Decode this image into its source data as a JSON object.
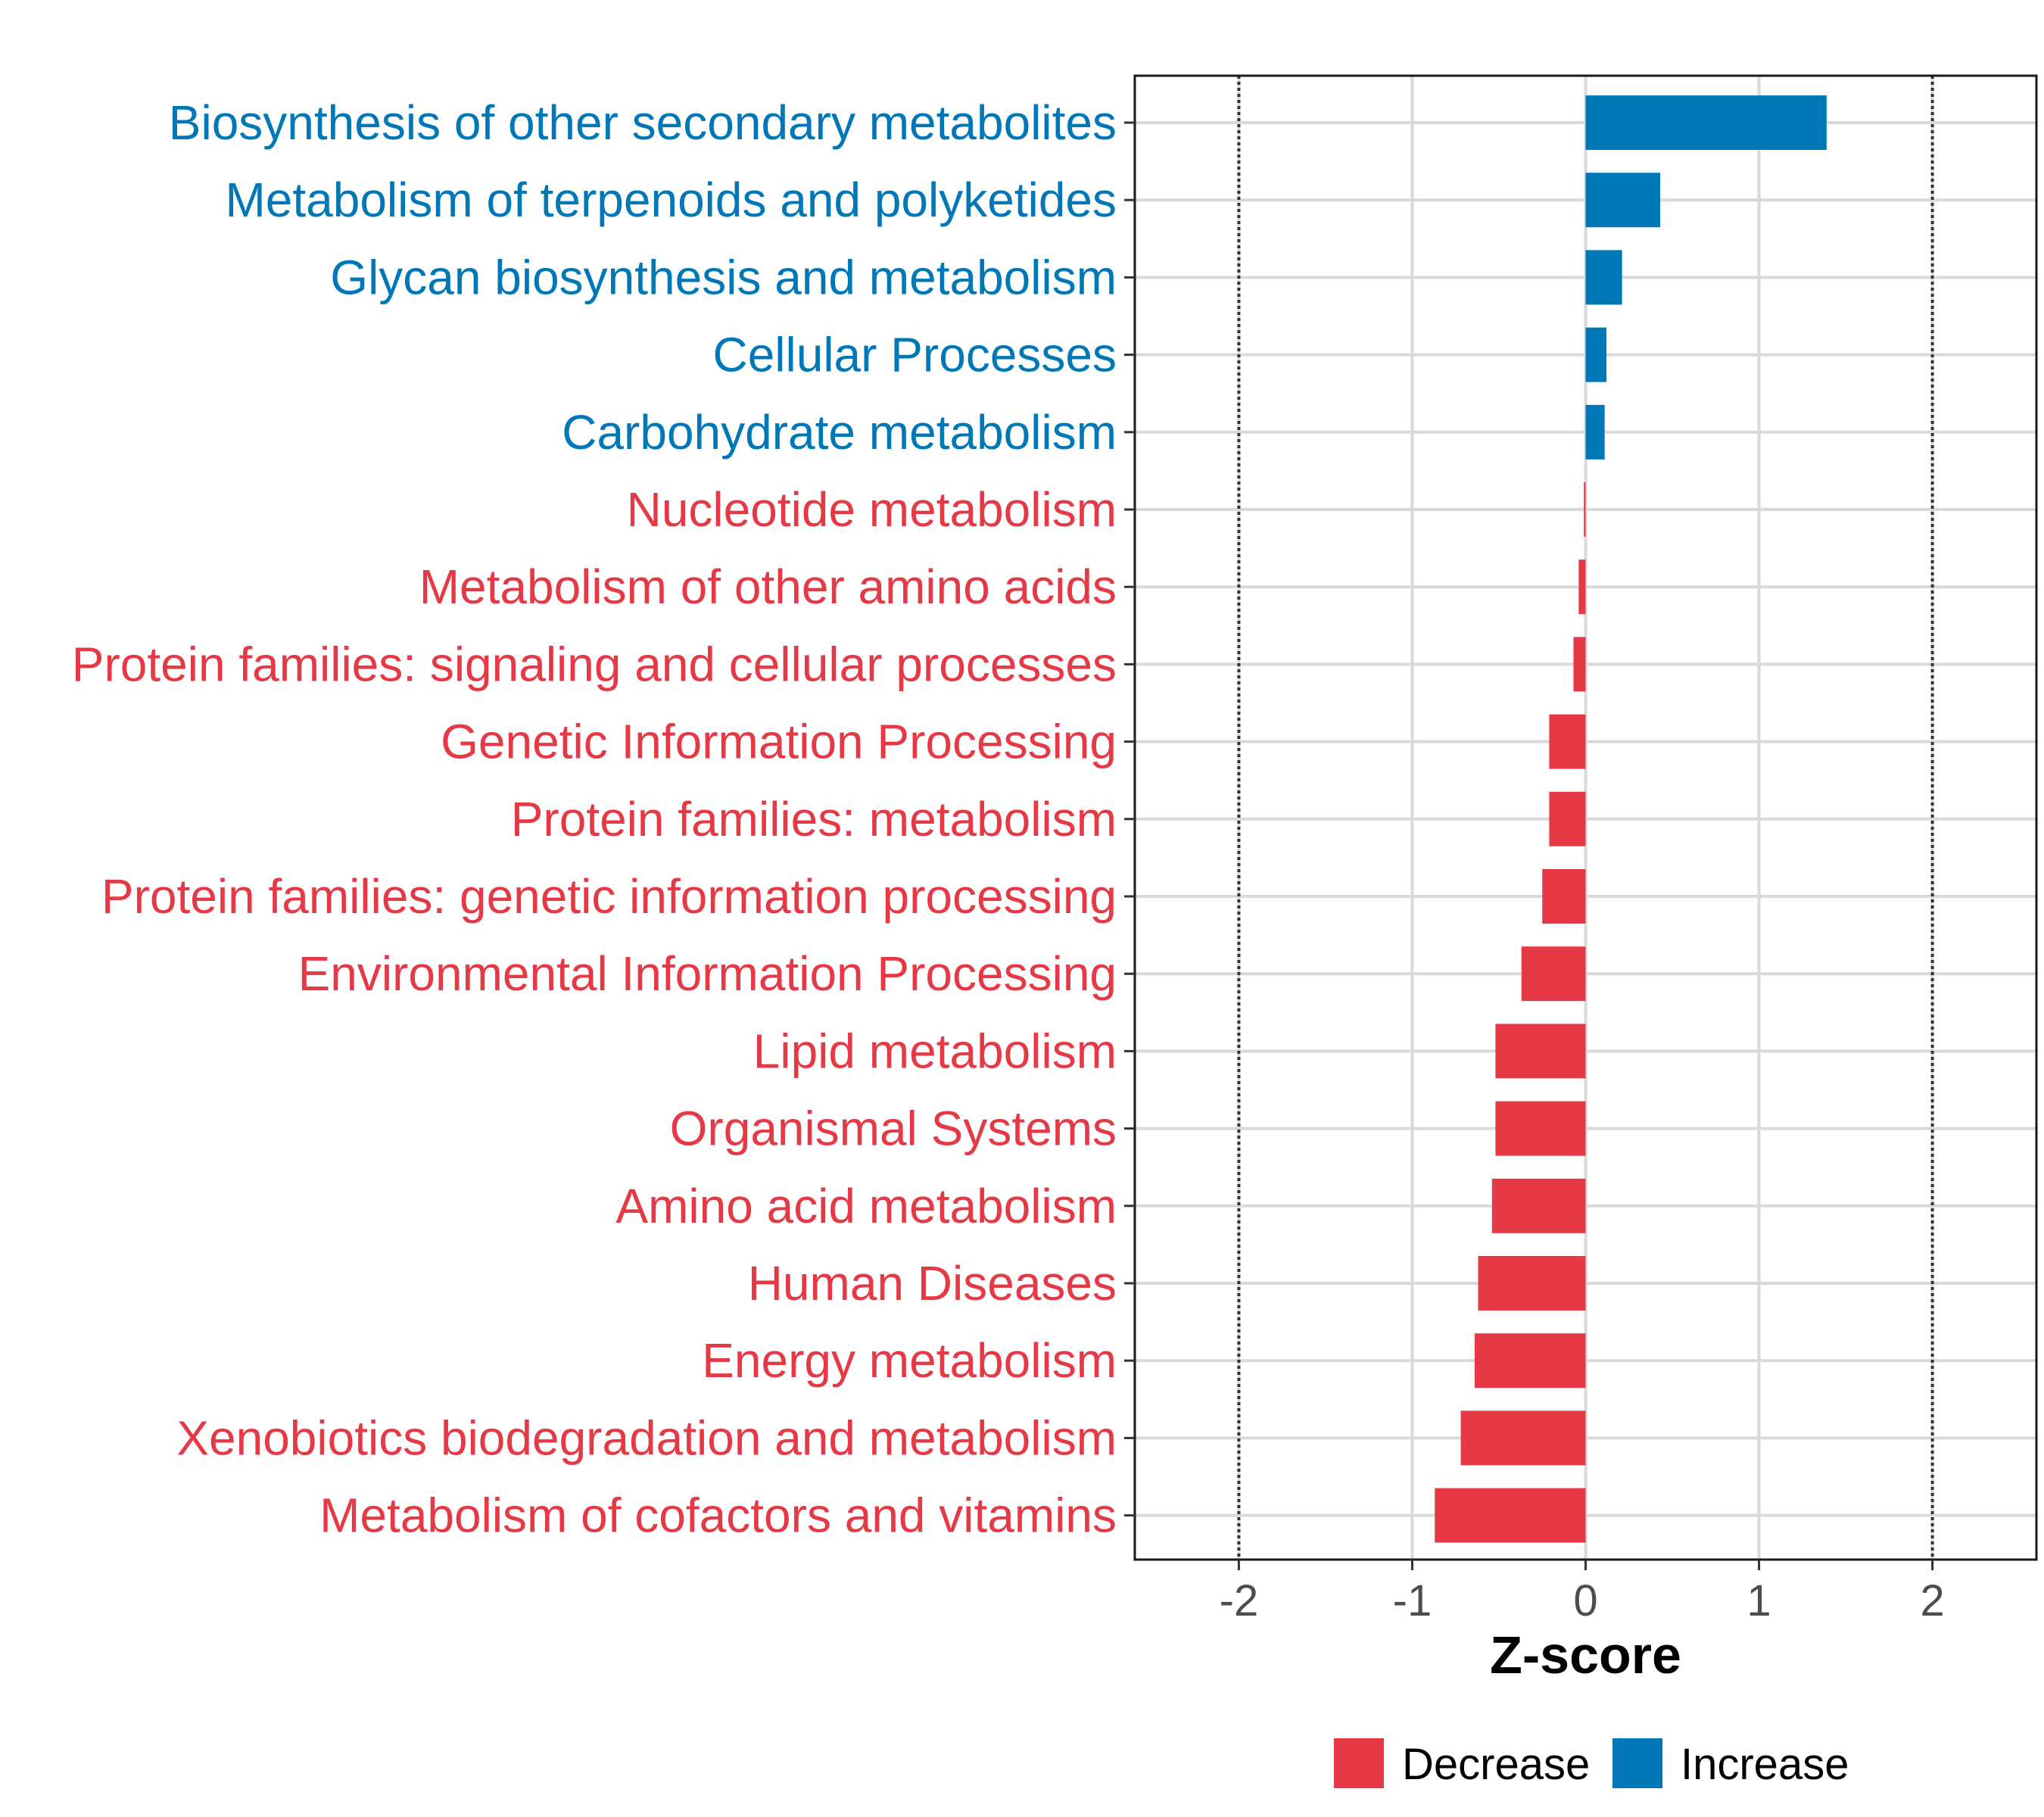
{
  "chart_data": {
    "type": "bar",
    "orientation": "horizontal",
    "xlabel": "Z-score",
    "xlim": [
      -2.6,
      2.6
    ],
    "x_ticks": [
      "-2",
      "-1",
      "0",
      "1",
      "2"
    ],
    "x_tick_values": [
      -2,
      -1,
      0,
      1,
      2
    ],
    "reference_lines": [
      -2,
      2
    ],
    "grid": true,
    "categories": [
      "Biosynthesis of other secondary metabolites",
      "Metabolism of terpenoids and polyketides",
      "Glycan biosynthesis and metabolism",
      "Cellular Processes",
      "Carbohydrate metabolism",
      "Nucleotide metabolism",
      "Metabolism of other amino acids",
      "Protein families: signaling and cellular processes",
      "Genetic Information Processing",
      "Protein families: metabolism",
      "Protein families: genetic information processing",
      "Environmental Information Processing",
      "Lipid metabolism",
      "Organismal Systems",
      "Amino acid metabolism",
      "Human Diseases",
      "Energy metabolism",
      "Xenobiotics biodegradation and metabolism",
      "Metabolism of cofactors and vitamins"
    ],
    "values": [
      1.39,
      0.43,
      0.21,
      0.12,
      0.11,
      -0.01,
      -0.04,
      -0.07,
      -0.21,
      -0.21,
      -0.25,
      -0.37,
      -0.52,
      -0.52,
      -0.54,
      -0.62,
      -0.64,
      -0.72,
      -0.87
    ],
    "groups": [
      "Increase",
      "Increase",
      "Increase",
      "Increase",
      "Increase",
      "Decrease",
      "Decrease",
      "Decrease",
      "Decrease",
      "Decrease",
      "Decrease",
      "Decrease",
      "Decrease",
      "Decrease",
      "Decrease",
      "Decrease",
      "Decrease",
      "Decrease",
      "Decrease"
    ],
    "legend": [
      {
        "name": "Decrease",
        "color": "#E63946"
      },
      {
        "name": "Increase",
        "color": "#0077B6"
      }
    ],
    "legend_position": "bottom"
  }
}
